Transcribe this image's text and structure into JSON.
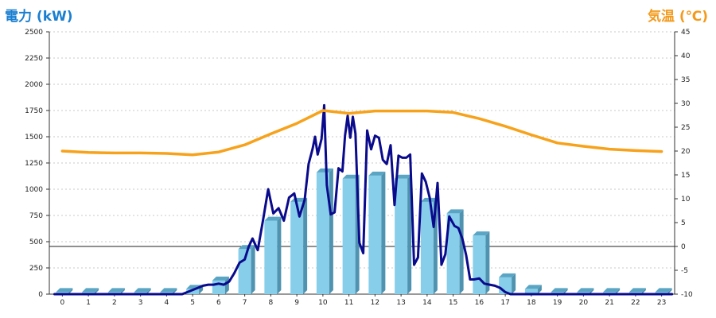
{
  "chart_data": {
    "type": "bar",
    "left_axis_title": "電力 (kW)",
    "right_axis_title": "気温 (℃)",
    "left_axis": {
      "min": 0,
      "max": 2500,
      "ticks": [
        0,
        250,
        500,
        750,
        1000,
        1250,
        1500,
        1750,
        2000,
        2250,
        2500
      ]
    },
    "right_axis": {
      "min": -10,
      "max": 45,
      "ticks": [
        -10,
        -5,
        0,
        5,
        10,
        15,
        20,
        25,
        30,
        35,
        40,
        45
      ]
    },
    "categories": [
      "0",
      "1",
      "2",
      "3",
      "4",
      "5",
      "6",
      "7",
      "8",
      "9",
      "10",
      "11",
      "12",
      "13",
      "14",
      "15",
      "16",
      "17",
      "18",
      "19",
      "20",
      "21",
      "22",
      "23"
    ],
    "grid": true,
    "series": [
      {
        "kind": "bar",
        "axis": "left",
        "values": [
          20,
          20,
          20,
          20,
          20,
          50,
          130,
          430,
          700,
          880,
          1160,
          1100,
          1130,
          1100,
          880,
          770,
          560,
          160,
          50,
          20,
          20,
          20,
          20,
          20
        ],
        "color": "#87ceeb"
      },
      {
        "kind": "line",
        "axis": "left",
        "color": "#0a0a8c",
        "points": [
          [
            -0.3,
            0
          ],
          [
            0,
            0
          ],
          [
            1,
            0
          ],
          [
            2,
            0
          ],
          [
            3,
            0
          ],
          [
            4,
            0
          ],
          [
            4.6,
            0
          ],
          [
            4.8,
            20
          ],
          [
            5,
            40
          ],
          [
            5.2,
            60
          ],
          [
            5.4,
            80
          ],
          [
            5.6,
            90
          ],
          [
            5.8,
            90
          ],
          [
            6,
            100
          ],
          [
            6.2,
            90
          ],
          [
            6.4,
            120
          ],
          [
            6.6,
            200
          ],
          [
            6.8,
            300
          ],
          [
            7,
            330
          ],
          [
            7.15,
            450
          ],
          [
            7.3,
            530
          ],
          [
            7.5,
            420
          ],
          [
            7.7,
            700
          ],
          [
            7.9,
            1000
          ],
          [
            8.1,
            770
          ],
          [
            8.3,
            820
          ],
          [
            8.5,
            700
          ],
          [
            8.7,
            920
          ],
          [
            8.9,
            960
          ],
          [
            9.1,
            740
          ],
          [
            9.3,
            900
          ],
          [
            9.45,
            1240
          ],
          [
            9.6,
            1380
          ],
          [
            9.7,
            1500
          ],
          [
            9.8,
            1330
          ],
          [
            9.95,
            1480
          ],
          [
            10.05,
            1800
          ],
          [
            10.15,
            1040
          ],
          [
            10.3,
            760
          ],
          [
            10.45,
            780
          ],
          [
            10.6,
            1200
          ],
          [
            10.75,
            1170
          ],
          [
            10.85,
            1510
          ],
          [
            10.95,
            1700
          ],
          [
            11.05,
            1490
          ],
          [
            11.15,
            1690
          ],
          [
            11.25,
            1530
          ],
          [
            11.4,
            490
          ],
          [
            11.55,
            390
          ],
          [
            11.7,
            1560
          ],
          [
            11.85,
            1380
          ],
          [
            12,
            1510
          ],
          [
            12.15,
            1490
          ],
          [
            12.3,
            1280
          ],
          [
            12.45,
            1240
          ],
          [
            12.6,
            1420
          ],
          [
            12.75,
            850
          ],
          [
            12.9,
            1320
          ],
          [
            13.05,
            1300
          ],
          [
            13.2,
            1300
          ],
          [
            13.35,
            1330
          ],
          [
            13.5,
            280
          ],
          [
            13.65,
            350
          ],
          [
            13.8,
            1150
          ],
          [
            13.95,
            1070
          ],
          [
            14.1,
            920
          ],
          [
            14.25,
            640
          ],
          [
            14.4,
            1060
          ],
          [
            14.55,
            280
          ],
          [
            14.7,
            380
          ],
          [
            14.85,
            740
          ],
          [
            15.05,
            650
          ],
          [
            15.2,
            630
          ],
          [
            15.35,
            530
          ],
          [
            15.5,
            370
          ],
          [
            15.65,
            140
          ],
          [
            15.8,
            140
          ],
          [
            16,
            150
          ],
          [
            16.2,
            100
          ],
          [
            16.4,
            90
          ],
          [
            16.6,
            80
          ],
          [
            16.8,
            60
          ],
          [
            17,
            20
          ],
          [
            17.2,
            0
          ],
          [
            18,
            0
          ],
          [
            19,
            0
          ],
          [
            20,
            0
          ],
          [
            21,
            0
          ],
          [
            22,
            0
          ],
          [
            23,
            0
          ],
          [
            23.4,
            0
          ]
        ]
      },
      {
        "kind": "line",
        "axis": "right",
        "color": "#f7a21b",
        "points": [
          [
            0,
            20
          ],
          [
            1,
            19.7
          ],
          [
            2,
            19.6
          ],
          [
            3,
            19.6
          ],
          [
            4,
            19.5
          ],
          [
            5,
            19.2
          ],
          [
            6,
            19.8
          ],
          [
            7,
            21.3
          ],
          [
            8,
            23.6
          ],
          [
            9,
            25.8
          ],
          [
            10,
            28.5
          ],
          [
            11,
            27.9
          ],
          [
            12,
            28.4
          ],
          [
            13,
            28.4
          ],
          [
            14,
            28.4
          ],
          [
            15,
            28.1
          ],
          [
            16,
            26.8
          ],
          [
            17,
            25.2
          ],
          [
            18,
            23.4
          ],
          [
            19,
            21.7
          ],
          [
            20,
            21.0
          ],
          [
            21,
            20.4
          ],
          [
            22,
            20.1
          ],
          [
            23,
            19.9
          ]
        ]
      }
    ]
  }
}
